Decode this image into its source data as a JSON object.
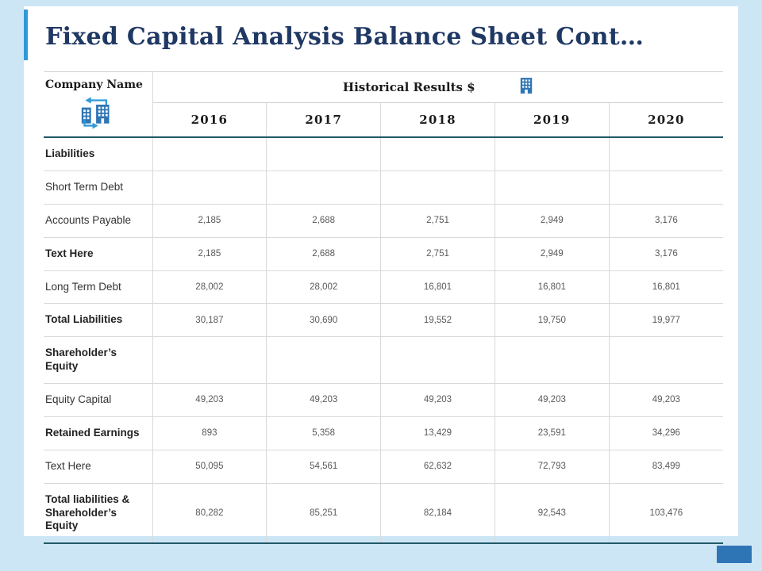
{
  "slide": {
    "title": "Fixed Capital Analysis Balance Sheet Cont…"
  },
  "colors": {
    "frame": "#CDE6F5",
    "accent": "#2E9BD8",
    "title": "#1F3864",
    "rule_dark": "#215968",
    "rule_light": "#D9D9D9",
    "icon_blue": "#2E75B6",
    "number_text": "#595959",
    "label_text": "#333333",
    "marker": "#2E75B6"
  },
  "icons": {
    "company": "company-buildings-transfer-icon",
    "historical": "building-icon"
  },
  "table": {
    "company_label": "Company Name",
    "header_title": "Historical Results $",
    "years": [
      "2016",
      "2017",
      "2018",
      "2019",
      "2020"
    ],
    "rows": [
      {
        "label": "Liabilities",
        "bold": true,
        "values": [
          "",
          "",
          "",
          "",
          ""
        ]
      },
      {
        "label": "Short Term Debt",
        "bold": false,
        "values": [
          "",
          "",
          "",
          "",
          ""
        ]
      },
      {
        "label": "Accounts Payable",
        "bold": false,
        "values": [
          "2,185",
          "2,688",
          "2,751",
          "2,949",
          "3,176"
        ]
      },
      {
        "label": "Text Here",
        "bold": true,
        "values": [
          "2,185",
          "2,688",
          "2,751",
          "2,949",
          "3,176"
        ]
      },
      {
        "label": "Long Term Debt",
        "bold": false,
        "values": [
          "28,002",
          "28,002",
          "16,801",
          "16,801",
          "16,801"
        ]
      },
      {
        "label": "Total Liabilities",
        "bold": true,
        "values": [
          "30,187",
          "30,690",
          "19,552",
          "19,750",
          "19,977"
        ]
      },
      {
        "label": "Shareholder’s Equity",
        "bold": true,
        "values": [
          "",
          "",
          "",
          "",
          ""
        ]
      },
      {
        "label": "Equity Capital",
        "bold": false,
        "values": [
          "49,203",
          "49,203",
          "49,203",
          "49,203",
          "49,203"
        ]
      },
      {
        "label": "Retained Earnings",
        "bold": true,
        "values": [
          "893",
          "5,358",
          "13,429",
          "23,591",
          "34,296"
        ]
      },
      {
        "label": "Text Here",
        "bold": false,
        "values": [
          "50,095",
          "54,561",
          "62,632",
          "72,793",
          "83,499"
        ]
      },
      {
        "label": "Total liabilities & Shareholder’s Equity",
        "bold": true,
        "values": [
          "80,282",
          "85,251",
          "82,184",
          "92,543",
          "103,476"
        ]
      }
    ]
  }
}
